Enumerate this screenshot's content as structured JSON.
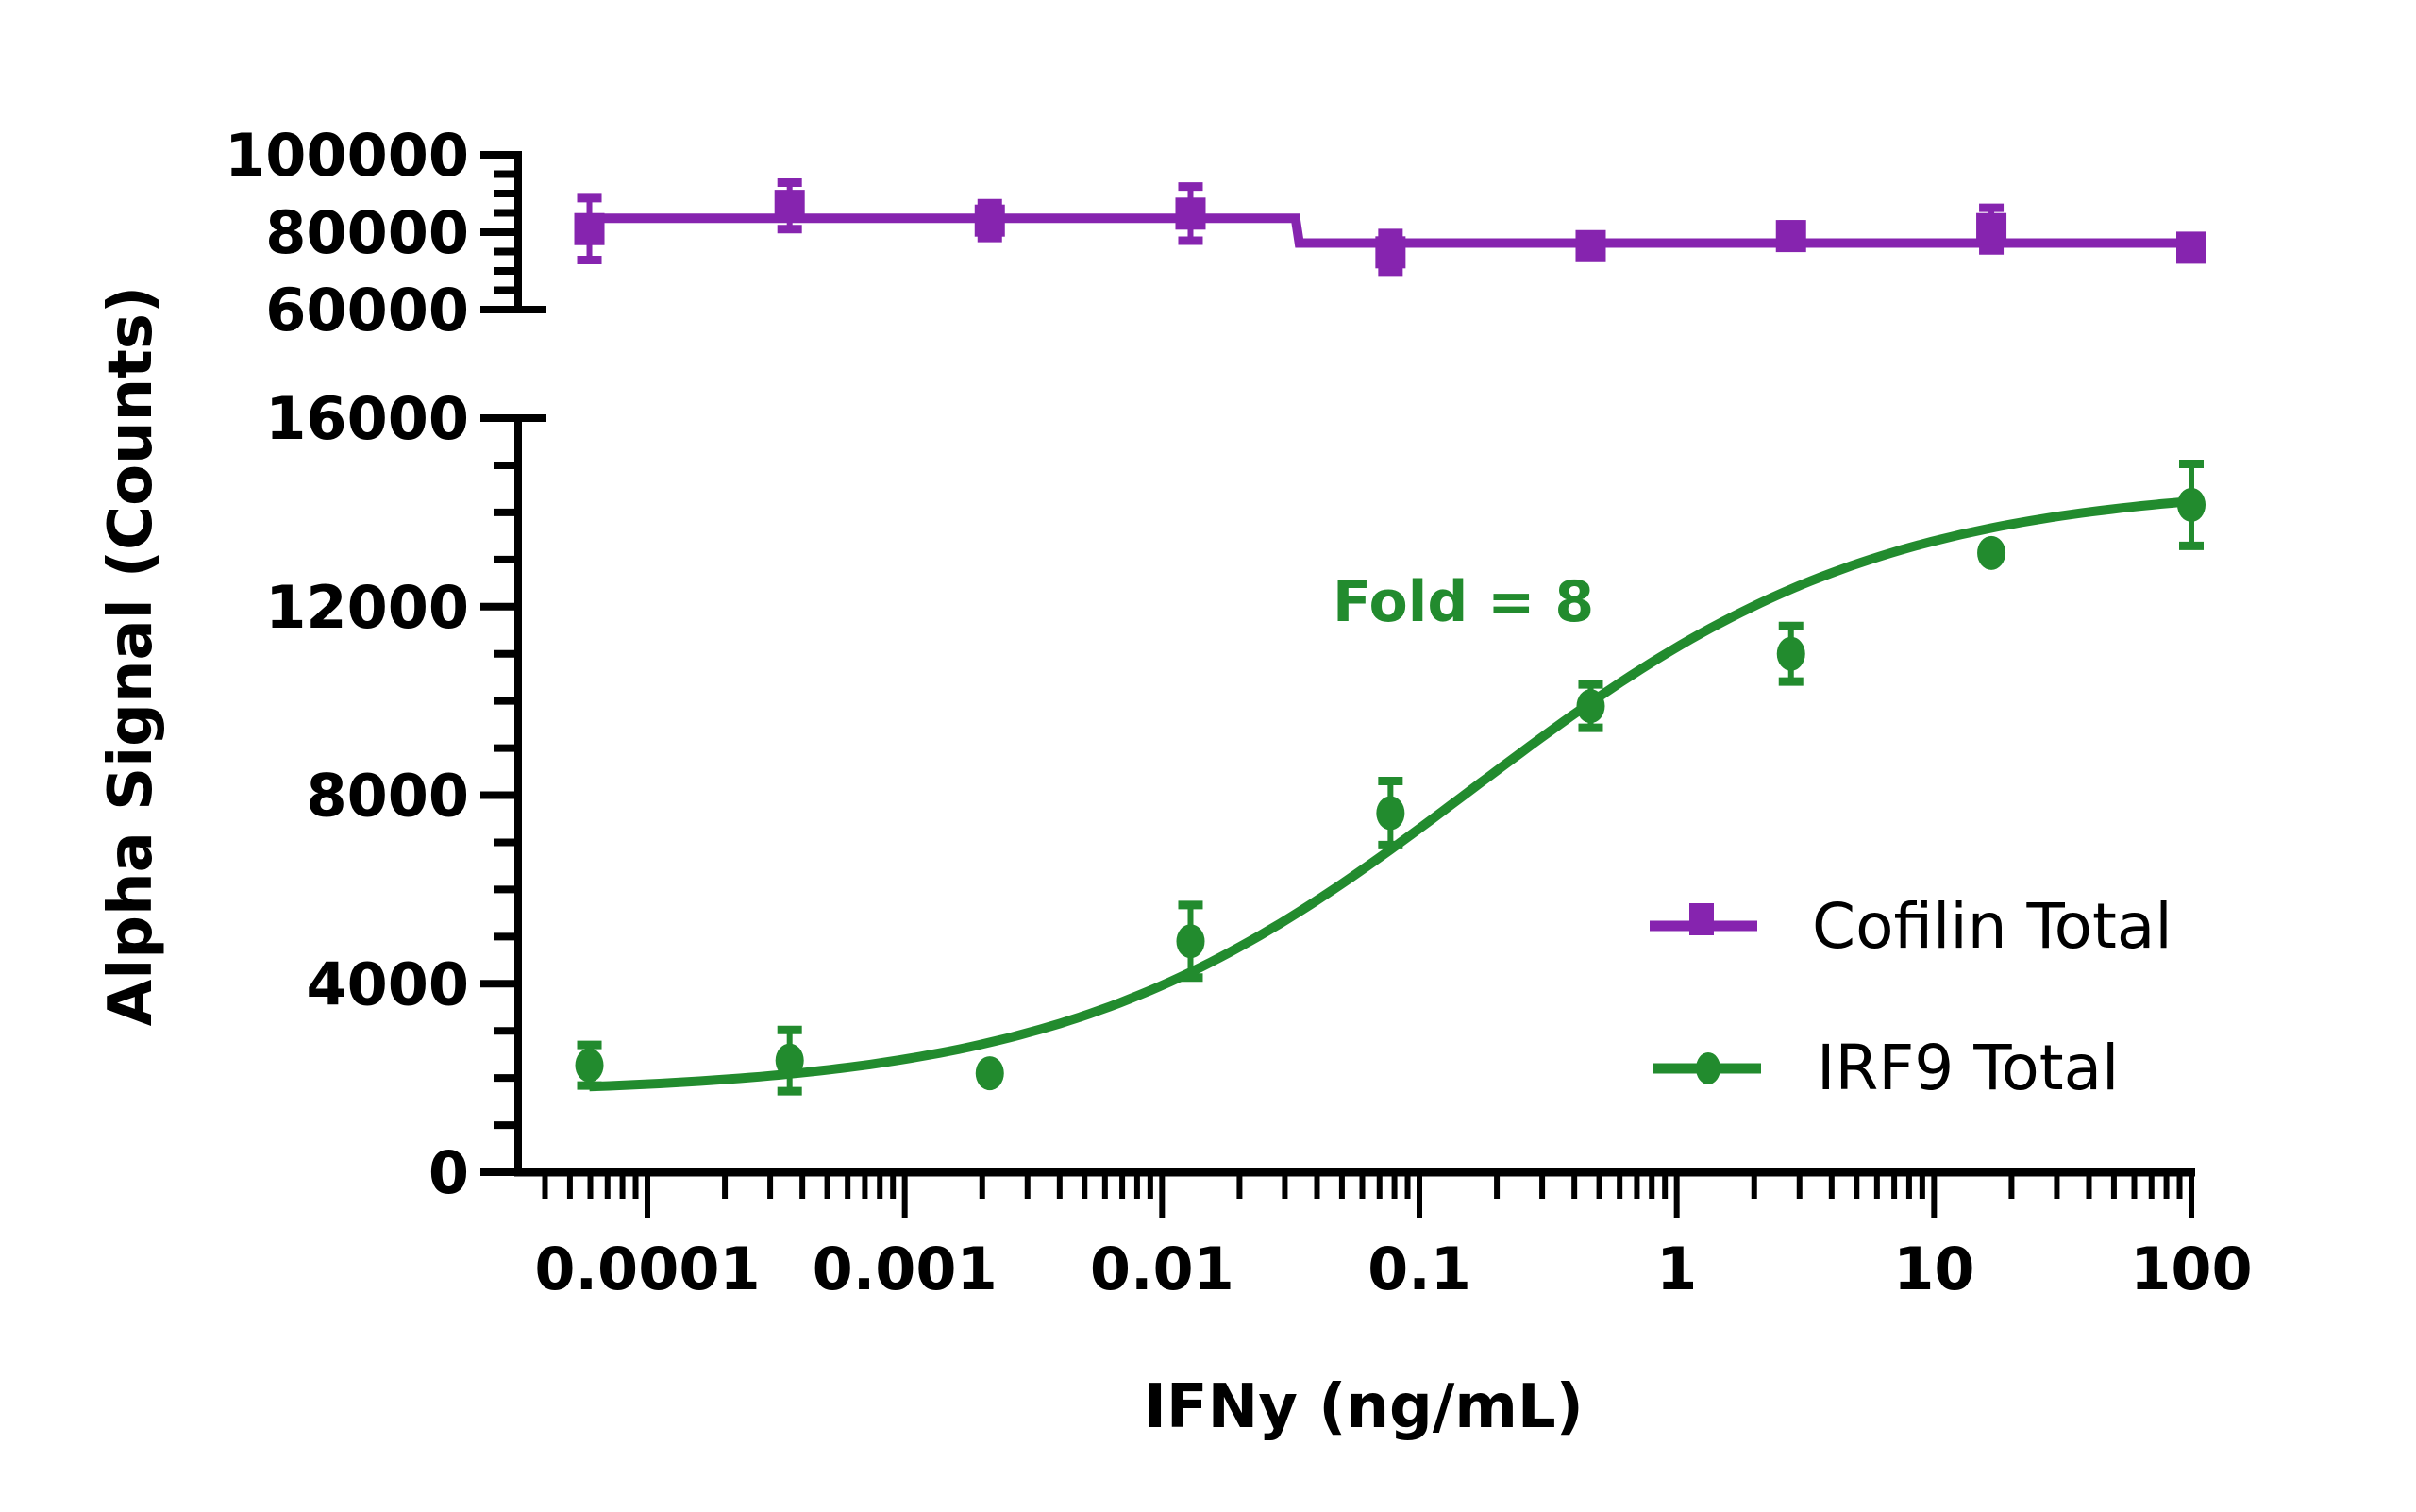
{
  "chart_data": {
    "type": "scatter",
    "title": "",
    "xlabel": "IFNy (ng/mL)",
    "ylabel": "Alpha Signal (Counts)",
    "xscale": "log",
    "xlim": [
      3e-05,
      100
    ],
    "x_ticks": [
      0.0001,
      0.001,
      0.01,
      0.1,
      1,
      10,
      100
    ],
    "x_tick_labels": [
      "0.0001",
      "0.001",
      "0.01",
      "0.1",
      "1",
      "10",
      "100"
    ],
    "panels": [
      {
        "name": "top",
        "ylim": [
          60000,
          100000
        ],
        "y_ticks": [
          60000,
          80000,
          100000
        ],
        "y_tick_labels": [
          "100000",
          "80000",
          "60000"
        ],
        "series": [
          "Cofilin Total"
        ]
      },
      {
        "name": "bottom",
        "ylim": [
          0,
          16000
        ],
        "y_ticks": [
          0,
          4000,
          8000,
          12000,
          16000
        ],
        "y_tick_labels": [
          "16000",
          "12000",
          "8000",
          "4000",
          "0"
        ],
        "series": [
          "IRF9 Total"
        ]
      }
    ],
    "x": [
      5.95e-05,
      0.000357,
      0.00214,
      0.0129,
      0.0772,
      0.463,
      2.78,
      16.7,
      100
    ],
    "series": [
      {
        "name": "Cofilin Total",
        "color": "#8624AF",
        "marker": "square",
        "panel": "top",
        "values": [
          80800,
          86800,
          83000,
          84800,
          74800,
          76400,
          79000,
          80800,
          76000
        ],
        "errors": [
          8000,
          6000,
          4500,
          7000,
          5000,
          800,
          3000,
          5500,
          800
        ],
        "fit": {
          "type": "step",
          "x_break": 0.033,
          "before": 83600,
          "after": 77200
        }
      },
      {
        "name": "IRF9 Total",
        "color": "#228B2E",
        "marker": "circle",
        "panel": "bottom",
        "values": [
          2270,
          2370,
          2100,
          4900,
          7620,
          9890,
          11000,
          13140,
          14160
        ],
        "errors": [
          430,
          650,
          0,
          770,
          680,
          460,
          590,
          150,
          870
        ],
        "fit": {
          "type": "4PL",
          "bottom": 1650,
          "top": 14600,
          "ec50": 0.16,
          "hill": 0.55
        }
      }
    ],
    "legend": {
      "position": "right",
      "entries": [
        "Cofilin Total",
        "IRF9 Total"
      ]
    },
    "annotations": [
      {
        "text": "Fold = 8",
        "color": "#228B2E"
      }
    ]
  }
}
